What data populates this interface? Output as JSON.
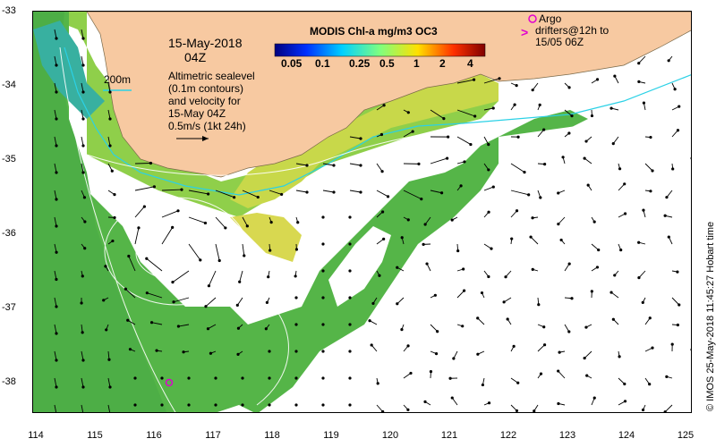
{
  "map": {
    "title_date": "15-May-2018",
    "title_time": "04Z",
    "colorbar": {
      "title": "MODIS Chl-a mg/m3 OC3",
      "ticks": [
        "0.05",
        "0.1",
        "0.25",
        "0.5",
        "1",
        "2",
        "4"
      ]
    },
    "legend_200m": "200m",
    "altimetry_lines": [
      "Altimetric sealevel",
      "(0.1m contours)",
      "and velocity for",
      "15-May 04Z",
      "0.5m/s (1kt 24h)"
    ],
    "argo_lines": [
      "Argo",
      "drifters@12h to",
      "15/05 06Z"
    ],
    "argo_symbol": ">",
    "credit": "© IMOS 25-May-2018 11:45:27 Hobart time",
    "y_ticks": [
      "-33",
      "-34",
      "-35",
      "-36",
      "-37",
      "-38"
    ],
    "x_ticks": [
      "114",
      "115",
      "116",
      "117",
      "118",
      "119",
      "120",
      "121",
      "122",
      "123",
      "124",
      "125"
    ],
    "lon_range": [
      114,
      125
    ],
    "lat_range": [
      -38.5,
      -33
    ],
    "colors": {
      "land": "#f7c9a1",
      "ocean_chl": "#5fb84a",
      "coastal_chl": "#c8d84a",
      "high_chl": "#e8802a",
      "contour": "#ffffff",
      "shelf_200m": "#2bd1e6",
      "argo": "#e000d0"
    }
  }
}
